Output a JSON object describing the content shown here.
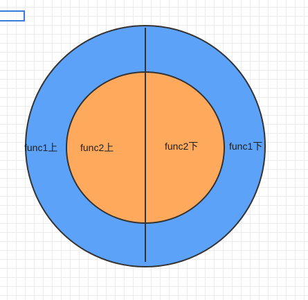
{
  "labels": {
    "outer_left": "func1上",
    "inner_left": "func2上",
    "inner_right": "func2下",
    "outer_right": "func1下"
  },
  "colors": {
    "outer_fill": "#5ba2f8",
    "inner_fill": "#ffa95d",
    "stroke": "#333333",
    "grid": "#ececec"
  }
}
